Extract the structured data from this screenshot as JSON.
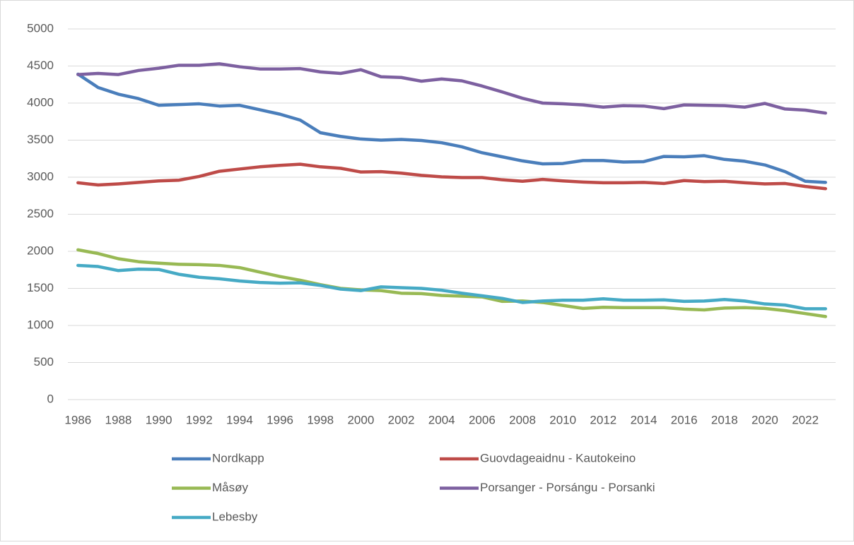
{
  "chart_data": {
    "type": "line",
    "categories": [
      "1986",
      null,
      "1988",
      null,
      "1990",
      null,
      "1992",
      null,
      "1994",
      null,
      "1996",
      null,
      "1998",
      null,
      "2000",
      null,
      "2002",
      null,
      "2004",
      null,
      "2006",
      null,
      "2008",
      null,
      "2010",
      null,
      "2012",
      null,
      "2014",
      null,
      "2016",
      null,
      "2018",
      null,
      "2020",
      null,
      "2022",
      null
    ],
    "ylim": [
      0,
      5000
    ],
    "yticks": [
      0,
      500,
      1000,
      1500,
      2000,
      2500,
      3000,
      3500,
      4000,
      4500,
      5000
    ],
    "grid": true,
    "legend": "bottom",
    "series": [
      {
        "name": "Nordkapp",
        "color": "#4a7ebb",
        "values": [
          4390,
          4210,
          4120,
          4060,
          3970,
          3980,
          3990,
          3960,
          3970,
          3910,
          3850,
          3770,
          3600,
          3550,
          3515,
          3500,
          3510,
          3495,
          3465,
          3410,
          3330,
          3275,
          3220,
          3180,
          3185,
          3225,
          3225,
          3205,
          3210,
          3280,
          3275,
          3290,
          3240,
          3215,
          3165,
          3075,
          2945,
          2930
        ]
      },
      {
        "name": "Guovdageaidnu - Kautokeino",
        "color": "#be4b48",
        "values": [
          2925,
          2895,
          2910,
          2930,
          2950,
          2960,
          3010,
          3080,
          3110,
          3140,
          3160,
          3175,
          3140,
          3120,
          3070,
          3075,
          3055,
          3025,
          3005,
          2995,
          2995,
          2965,
          2945,
          2970,
          2950,
          2935,
          2925,
          2925,
          2930,
          2915,
          2955,
          2940,
          2945,
          2925,
          2910,
          2915,
          2875,
          2845
        ]
      },
      {
        "name": "Måsøy",
        "color": "#98b954",
        "values": [
          2020,
          1970,
          1900,
          1860,
          1840,
          1825,
          1820,
          1810,
          1780,
          1720,
          1660,
          1610,
          1550,
          1500,
          1480,
          1470,
          1435,
          1430,
          1405,
          1395,
          1385,
          1325,
          1330,
          1310,
          1270,
          1230,
          1245,
          1240,
          1240,
          1240,
          1220,
          1210,
          1235,
          1240,
          1230,
          1200,
          1160,
          1120
        ]
      },
      {
        "name": "Porsanger - Porsángu - Porsanki",
        "color": "#7d60a0",
        "values": [
          4385,
          4400,
          4385,
          4440,
          4470,
          4510,
          4510,
          4530,
          4490,
          4460,
          4460,
          4465,
          4420,
          4400,
          4450,
          4355,
          4345,
          4295,
          4325,
          4300,
          4230,
          4150,
          4065,
          4000,
          3990,
          3975,
          3945,
          3965,
          3960,
          3925,
          3975,
          3970,
          3965,
          3945,
          3995,
          3920,
          3905,
          3865
        ]
      },
      {
        "name": "Lebesby",
        "color": "#46aac5",
        "values": [
          1810,
          1795,
          1740,
          1760,
          1755,
          1690,
          1650,
          1630,
          1600,
          1580,
          1570,
          1575,
          1540,
          1490,
          1470,
          1520,
          1510,
          1500,
          1475,
          1435,
          1400,
          1365,
          1310,
          1330,
          1340,
          1340,
          1360,
          1340,
          1340,
          1345,
          1325,
          1330,
          1350,
          1330,
          1290,
          1275,
          1225,
          1225
        ]
      }
    ]
  }
}
